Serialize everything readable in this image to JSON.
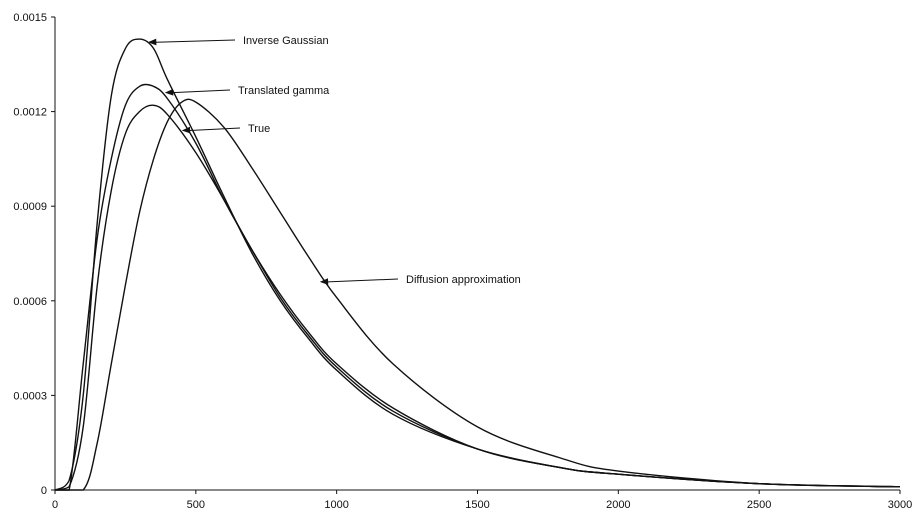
{
  "chart_data": {
    "type": "line",
    "title": "",
    "xlabel": "",
    "ylabel": "",
    "xlim": [
      0,
      3000
    ],
    "ylim": [
      0,
      0.0015
    ],
    "x_ticks": [
      0,
      500,
      1000,
      1500,
      2000,
      2500,
      3000
    ],
    "y_ticks": [
      0,
      0.0003,
      0.0006,
      0.0009,
      0.0012,
      0.0015
    ],
    "x_tick_labels": [
      "0",
      "500",
      "1000",
      "1500",
      "2000",
      "2500",
      "3000"
    ],
    "y_tick_labels": [
      "0",
      "0.0003",
      "0.0006",
      "0.0009",
      "0.0012",
      "0.0015"
    ],
    "grid": false,
    "legend": "none",
    "series": [
      {
        "name": "Inverse Gaussian",
        "x": [
          0,
          50,
          100,
          150,
          200,
          250,
          300,
          350,
          400,
          500,
          600,
          700,
          800,
          900,
          1000,
          1200,
          1500,
          1800,
          2000,
          2500,
          3000
        ],
        "y": [
          0,
          3e-05,
          0.0003,
          0.00085,
          0.00125,
          0.0014,
          0.00143,
          0.0014,
          0.0013,
          0.00112,
          0.00093,
          0.00075,
          0.0006,
          0.00048,
          0.00038,
          0.00024,
          0.00013,
          7e-05,
          5e-05,
          2e-05,
          1e-05
        ]
      },
      {
        "name": "Translated gamma",
        "x": [
          0,
          50,
          100,
          150,
          200,
          250,
          300,
          350,
          400,
          500,
          600,
          700,
          800,
          900,
          1000,
          1200,
          1500,
          1800,
          2000,
          2500,
          3000
        ],
        "y": [
          0,
          0,
          0.0004,
          0.0008,
          0.00105,
          0.00122,
          0.00128,
          0.00128,
          0.00124,
          0.0011,
          0.00092,
          0.00076,
          0.00061,
          0.00049,
          0.00039,
          0.00025,
          0.00013,
          7e-05,
          5e-05,
          2e-05,
          1e-05
        ]
      },
      {
        "name": "True",
        "x": [
          0,
          50,
          100,
          150,
          200,
          250,
          300,
          350,
          400,
          500,
          600,
          700,
          800,
          900,
          1000,
          1200,
          1500,
          1800,
          2000,
          2500,
          3000
        ],
        "y": [
          0,
          1e-05,
          0.0002,
          0.00065,
          0.00095,
          0.00113,
          0.0012,
          0.00122,
          0.00119,
          0.00107,
          0.00092,
          0.00076,
          0.00062,
          0.0005,
          0.0004,
          0.00026,
          0.00013,
          7e-05,
          5e-05,
          2e-05,
          1e-05
        ]
      },
      {
        "name": "Diffusion approximation",
        "x": [
          0,
          100,
          150,
          200,
          250,
          300,
          350,
          400,
          450,
          500,
          600,
          700,
          800,
          900,
          1000,
          1200,
          1500,
          1800,
          2000,
          2500,
          3000
        ],
        "y": [
          0,
          0,
          0.00015,
          0.0004,
          0.00065,
          0.00088,
          0.00105,
          0.00117,
          0.00123,
          0.00123,
          0.00115,
          0.00102,
          0.00088,
          0.00074,
          0.00061,
          0.0004,
          0.0002,
          0.0001,
          6e-05,
          2e-05,
          1e-05
        ]
      }
    ],
    "annotations": [
      {
        "text": "Inverse Gaussian",
        "series": "Inverse Gaussian",
        "point_x": 330,
        "point_y": 0.00142
      },
      {
        "text": "Translated gamma",
        "series": "Translated gamma",
        "point_x": 390,
        "point_y": 0.00126
      },
      {
        "text": "True",
        "series": "True",
        "point_x": 450,
        "point_y": 0.00114
      },
      {
        "text": "Diffusion approximation",
        "series": "Diffusion approximation",
        "point_x": 940,
        "point_y": 0.00066
      }
    ]
  }
}
